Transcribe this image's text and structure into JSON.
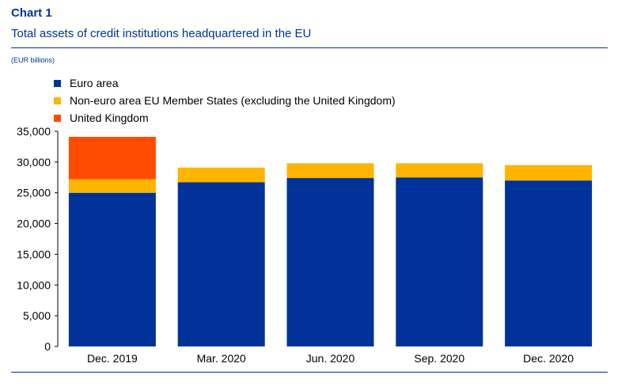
{
  "header": {
    "title": "Chart 1",
    "subtitle": "Total assets of credit institutions headquartered in the EU",
    "unit": "(EUR billions)"
  },
  "colors": {
    "euro_area": "#003299",
    "non_euro": "#FFB400",
    "uk": "#FF4B00",
    "text_blue": "#003299"
  },
  "chart_data": {
    "type": "bar",
    "stacked": true,
    "categories": [
      "Dec. 2019",
      "Mar. 2020",
      "Jun. 2020",
      "Sep. 2020",
      "Dec. 2020"
    ],
    "series": [
      {
        "name": "Euro area",
        "values": [
          25000,
          26700,
          27400,
          27500,
          27000
        ],
        "color": "#003299"
      },
      {
        "name": "Non-euro area EU Member States (excluding the United Kingdom)",
        "values": [
          2200,
          2400,
          2400,
          2300,
          2500
        ],
        "color": "#FFB400"
      },
      {
        "name": "United Kingdom",
        "values": [
          6900,
          0,
          0,
          0,
          0
        ],
        "color": "#FF4B00"
      }
    ],
    "ylim": [
      0,
      35000
    ],
    "yticks": [
      0,
      5000,
      10000,
      15000,
      20000,
      25000,
      30000,
      35000
    ],
    "ytick_labels": [
      "0",
      "5,000",
      "10,000",
      "15,000",
      "20,000",
      "25,000",
      "30,000",
      "35,000"
    ],
    "xlabel": "",
    "ylabel": "",
    "grid": false,
    "legend_position": "top-left"
  }
}
